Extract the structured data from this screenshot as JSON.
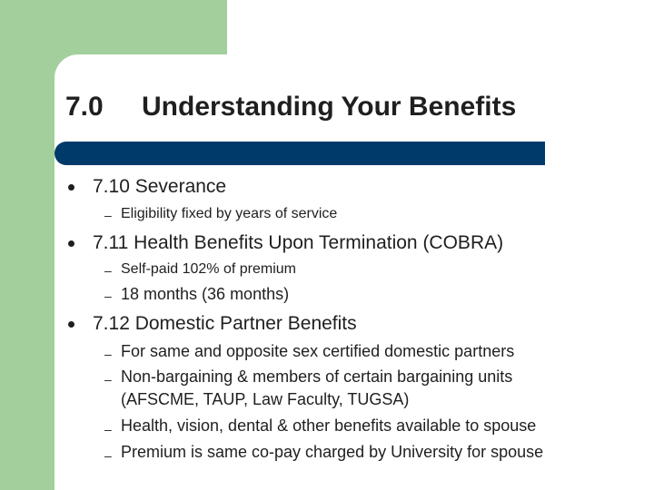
{
  "slide": {
    "title_number": "7.0",
    "title_text": "Understanding Your Benefits",
    "colors": {
      "accent_green": "#a2cf9c",
      "title_bar_navy": "#003a6a",
      "text": "#1f1f1f"
    },
    "sections": [
      {
        "heading": "7.10 Severance",
        "items": [
          "Eligibility fixed by years of service"
        ]
      },
      {
        "heading": "7.11 Health Benefits Upon Termination (COBRA)",
        "items": [
          "Self-paid 102% of premium",
          "18 months (36 months)"
        ]
      },
      {
        "heading": "7.12  Domestic Partner Benefits",
        "items": [
          "For same and opposite sex certified domestic partners",
          "Non-bargaining & members of certain bargaining units",
          "(AFSCME, TAUP, Law Faculty, TUGSA)",
          "Health, vision, dental & other benefits available to spouse",
          "Premium is same co-pay charged by University for spouse"
        ]
      }
    ],
    "dash_glyph": "–"
  }
}
